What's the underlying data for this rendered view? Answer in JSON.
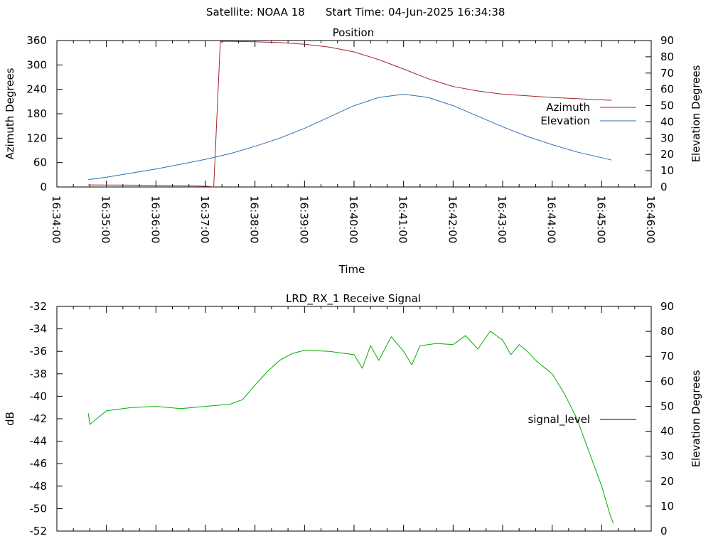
{
  "header": {
    "satellite": "Satellite: NOAA 18",
    "start_time": "Start Time: 04-Jun-2025 16:34:38"
  },
  "chart_data": [
    {
      "type": "line",
      "title": "Position",
      "xlabel": "Time",
      "ylabel": "Azimuth Degrees",
      "y2label": "Elevation Degrees",
      "x_range": [
        "16:34:00",
        "16:46:00"
      ],
      "x_ticks": [
        "16:34:00",
        "16:35:00",
        "16:36:00",
        "16:37:00",
        "16:38:00",
        "16:39:00",
        "16:40:00",
        "16:41:00",
        "16:42:00",
        "16:43:00",
        "16:44:00",
        "16:45:00",
        "16:46:00"
      ],
      "ylim": [
        0,
        360
      ],
      "y_ticks": [
        0,
        60,
        120,
        180,
        240,
        300,
        360
      ],
      "y2lim": [
        0,
        90
      ],
      "y2_ticks": [
        0,
        10,
        20,
        30,
        40,
        50,
        60,
        70,
        80,
        90
      ],
      "legend_position": "right",
      "series": [
        {
          "name": "Azimuth",
          "axis": "y",
          "color": "#a0242c",
          "points": [
            [
              "16:34:38",
              5
            ],
            [
              "16:35:30",
              4.5
            ],
            [
              "16:36:30",
              3
            ],
            [
              "16:37:00",
              2
            ],
            [
              "16:37:10",
              0
            ],
            [
              "16:37:18",
              358
            ],
            [
              "16:37:30",
              358
            ],
            [
              "16:38:00",
              357
            ],
            [
              "16:38:30",
              355
            ],
            [
              "16:39:00",
              351
            ],
            [
              "16:39:30",
              344
            ],
            [
              "16:40:00",
              332
            ],
            [
              "16:40:30",
              313
            ],
            [
              "16:41:00",
              290
            ],
            [
              "16:41:30",
              266
            ],
            [
              "16:42:00",
              247
            ],
            [
              "16:42:30",
              236
            ],
            [
              "16:43:00",
              228
            ],
            [
              "16:43:30",
              224
            ],
            [
              "16:44:00",
              220
            ],
            [
              "16:44:30",
              217
            ],
            [
              "16:45:00",
              214
            ],
            [
              "16:45:12",
              213
            ]
          ]
        },
        {
          "name": "Elevation",
          "axis": "y2",
          "color": "#2e6fb5",
          "points": [
            [
              "16:34:38",
              4.5
            ],
            [
              "16:35:00",
              6
            ],
            [
              "16:35:30",
              8.5
            ],
            [
              "16:36:00",
              11
            ],
            [
              "16:36:30",
              14
            ],
            [
              "16:37:00",
              17
            ],
            [
              "16:37:30",
              20.5
            ],
            [
              "16:38:00",
              25
            ],
            [
              "16:38:30",
              30
            ],
            [
              "16:39:00",
              36
            ],
            [
              "16:39:30",
              43
            ],
            [
              "16:40:00",
              50
            ],
            [
              "16:40:30",
              55
            ],
            [
              "16:41:00",
              57
            ],
            [
              "16:41:30",
              55
            ],
            [
              "16:42:00",
              50
            ],
            [
              "16:42:30",
              43.5
            ],
            [
              "16:43:00",
              37
            ],
            [
              "16:43:30",
              31
            ],
            [
              "16:44:00",
              26
            ],
            [
              "16:44:30",
              21.5
            ],
            [
              "16:45:00",
              18
            ],
            [
              "16:45:12",
              16.5
            ]
          ]
        }
      ]
    },
    {
      "type": "line",
      "title": "LRD_RX_1 Receive Signal",
      "ylabel": "dB",
      "y2label": "Elevation Degrees",
      "x_range": [
        "16:34:00",
        "16:46:00"
      ],
      "ylim": [
        -52,
        -32
      ],
      "y_ticks": [
        -52,
        -50,
        -48,
        -46,
        -44,
        -42,
        -40,
        -38,
        -36,
        -34,
        -32
      ],
      "y2lim": [
        0,
        90
      ],
      "y2_ticks": [
        0,
        10,
        20,
        30,
        40,
        50,
        60,
        70,
        80,
        90
      ],
      "legend_position": "right",
      "series": [
        {
          "name": "signal_level",
          "axis": "y",
          "color": "#00b000",
          "points": [
            [
              "16:34:38",
              -41.5
            ],
            [
              "16:34:40",
              -42.5
            ],
            [
              "16:35:00",
              -41.3
            ],
            [
              "16:35:30",
              -41.0
            ],
            [
              "16:36:00",
              -40.9
            ],
            [
              "16:36:30",
              -41.1
            ],
            [
              "16:37:00",
              -40.9
            ],
            [
              "16:37:30",
              -40.7
            ],
            [
              "16:37:45",
              -40.3
            ],
            [
              "16:38:00",
              -39.0
            ],
            [
              "16:38:15",
              -37.8
            ],
            [
              "16:38:30",
              -36.8
            ],
            [
              "16:38:45",
              -36.2
            ],
            [
              "16:39:00",
              -35.9
            ],
            [
              "16:39:30",
              -36.0
            ],
            [
              "16:40:00",
              -36.3
            ],
            [
              "16:40:10",
              -37.5
            ],
            [
              "16:40:20",
              -35.5
            ],
            [
              "16:40:30",
              -36.8
            ],
            [
              "16:40:45",
              -34.7
            ],
            [
              "16:41:00",
              -36.0
            ],
            [
              "16:41:10",
              -37.2
            ],
            [
              "16:41:20",
              -35.5
            ],
            [
              "16:41:40",
              -35.3
            ],
            [
              "16:42:00",
              -35.4
            ],
            [
              "16:42:15",
              -34.6
            ],
            [
              "16:42:30",
              -35.8
            ],
            [
              "16:42:45",
              -34.2
            ],
            [
              "16:43:00",
              -35.0
            ],
            [
              "16:43:10",
              -36.3
            ],
            [
              "16:43:20",
              -35.4
            ],
            [
              "16:43:30",
              -36.0
            ],
            [
              "16:43:40",
              -36.8
            ],
            [
              "16:44:00",
              -38.0
            ],
            [
              "16:44:15",
              -39.8
            ],
            [
              "16:44:30",
              -42.0
            ],
            [
              "16:44:45",
              -45.0
            ],
            [
              "16:45:00",
              -48.0
            ],
            [
              "16:45:10",
              -50.5
            ],
            [
              "16:45:14",
              -51.3
            ]
          ]
        }
      ]
    }
  ]
}
